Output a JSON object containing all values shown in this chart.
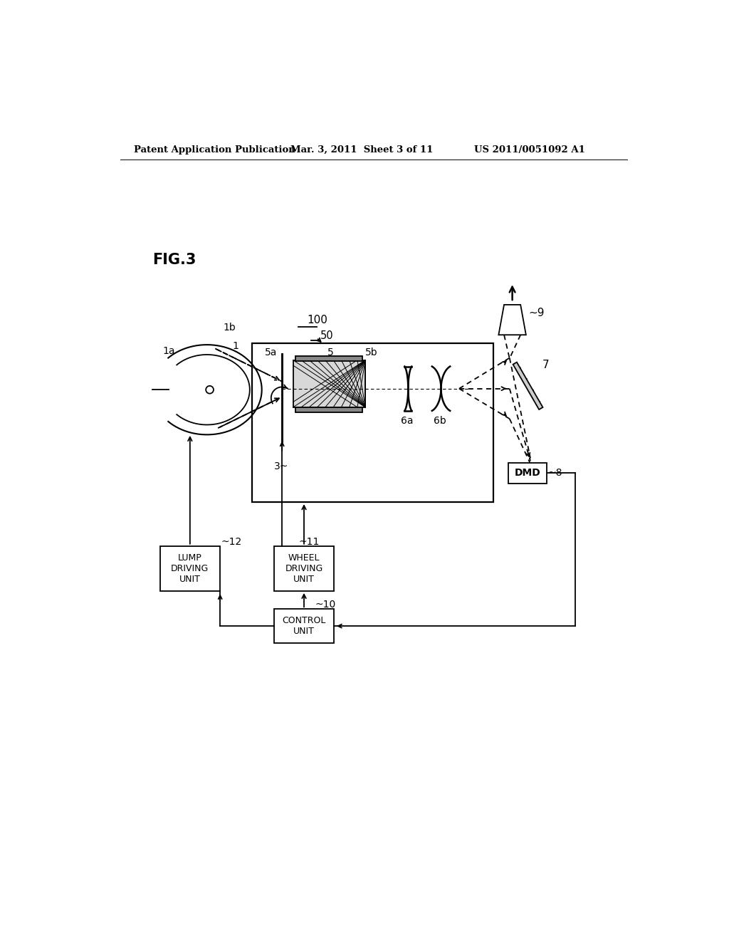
{
  "bg_color": "#ffffff",
  "lc": "#000000",
  "header_left": "Patent Application Publication",
  "header_mid": "Mar. 3, 2011  Sheet 3 of 11",
  "header_right": "US 2011/0051092 A1",
  "fig_label": "FIG.3",
  "label_100": "100",
  "label_50": "50",
  "label_1": "1",
  "label_1a": "1a",
  "label_1b": "1b",
  "label_3": "3~",
  "label_5": "5",
  "label_5a": "5a",
  "label_5b": "5b",
  "label_6a": "6a",
  "label_6b": "6b",
  "label_7": "7",
  "label_8": "~8",
  "label_9": "~9",
  "label_10": "10",
  "label_11": "11",
  "label_12": "12",
  "box_lump": "LUMP\nDRIVING\nUNIT",
  "box_wheel": "WHEEL\nDRIVING\nUNIT",
  "box_control": "CONTROL\nUNIT",
  "box_dmd": "DMD"
}
